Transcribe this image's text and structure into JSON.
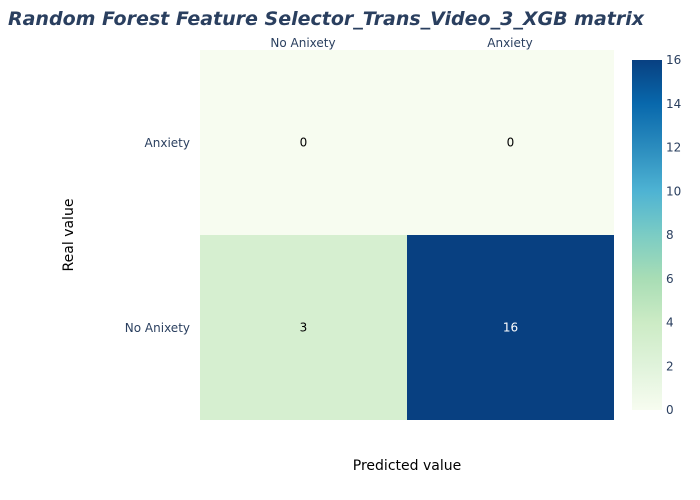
{
  "chart_data": {
    "type": "heatmap",
    "title": "Random Forest Feature Selector_Trans_Video_3_XGB matrix",
    "xlabel": "Predicted value",
    "ylabel": "Real value",
    "x_categories": [
      "No Anixety",
      "Anxiety"
    ],
    "y_categories_top_to_bottom": [
      "Anxiety",
      "No Anixety"
    ],
    "z": [
      [
        0,
        0
      ],
      [
        3,
        16
      ]
    ],
    "zlim": [
      0,
      16
    ],
    "colorscale": "GnBu",
    "colorbar_ticks": [
      "0",
      "2",
      "4",
      "6",
      "8",
      "10",
      "12",
      "14",
      "16"
    ],
    "x_axis_side": "top"
  }
}
